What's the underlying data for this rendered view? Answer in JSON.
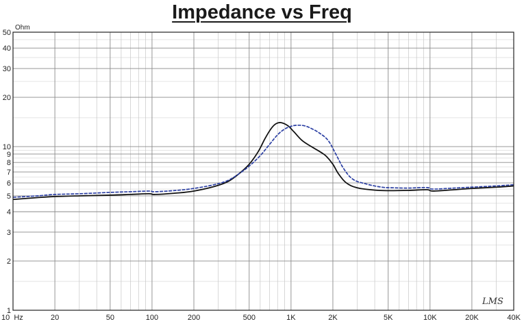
{
  "chart_data": {
    "type": "line",
    "title": "Impedance vs Freq",
    "ylabel": "Ohm",
    "xlabel": "",
    "x_scale": "log",
    "y_scale": "log",
    "xlim": [
      10,
      40000
    ],
    "ylim": [
      1,
      50
    ],
    "grid": true,
    "watermark": "LMS",
    "x_tick_labels": [
      {
        "value": 10,
        "label": "10  Hz"
      },
      {
        "value": 20,
        "label": "20"
      },
      {
        "value": 50,
        "label": "50"
      },
      {
        "value": 100,
        "label": "100"
      },
      {
        "value": 200,
        "label": "200"
      },
      {
        "value": 500,
        "label": "500"
      },
      {
        "value": 1000,
        "label": "1K"
      },
      {
        "value": 2000,
        "label": "2K"
      },
      {
        "value": 5000,
        "label": "5K"
      },
      {
        "value": 10000,
        "label": "10K"
      },
      {
        "value": 20000,
        "label": "20K"
      },
      {
        "value": 40000,
        "label": "40K"
      }
    ],
    "y_tick_labels": [
      {
        "value": 1,
        "label": "1"
      },
      {
        "value": 2,
        "label": "2"
      },
      {
        "value": 3,
        "label": "3"
      },
      {
        "value": 4,
        "label": "4"
      },
      {
        "value": 5,
        "label": "5"
      },
      {
        "value": 6,
        "label": "6"
      },
      {
        "value": 7,
        "label": "7"
      },
      {
        "value": 8,
        "label": "8"
      },
      {
        "value": 9,
        "label": "9"
      },
      {
        "value": 10,
        "label": "10"
      },
      {
        "value": 20,
        "label": "20"
      },
      {
        "value": 30,
        "label": "30"
      },
      {
        "value": 40,
        "label": "40"
      },
      {
        "value": 50,
        "label": "50"
      }
    ],
    "series": [
      {
        "color": "#111111",
        "style": "solid",
        "points": [
          [
            10,
            4.75
          ],
          [
            15,
            4.88
          ],
          [
            20,
            4.95
          ],
          [
            30,
            5.0
          ],
          [
            50,
            5.05
          ],
          [
            70,
            5.1
          ],
          [
            95,
            5.15
          ],
          [
            105,
            5.1
          ],
          [
            150,
            5.2
          ],
          [
            200,
            5.35
          ],
          [
            280,
            5.7
          ],
          [
            350,
            6.1
          ],
          [
            420,
            6.8
          ],
          [
            500,
            7.8
          ],
          [
            580,
            9.3
          ],
          [
            650,
            11.2
          ],
          [
            720,
            12.9
          ],
          [
            780,
            13.8
          ],
          [
            850,
            14.0
          ],
          [
            950,
            13.4
          ],
          [
            1050,
            12.3
          ],
          [
            1200,
            10.9
          ],
          [
            1400,
            10.0
          ],
          [
            1650,
            9.2
          ],
          [
            1800,
            8.7
          ],
          [
            2000,
            7.8
          ],
          [
            2200,
            6.8
          ],
          [
            2500,
            6.0
          ],
          [
            3000,
            5.6
          ],
          [
            4000,
            5.42
          ],
          [
            5000,
            5.38
          ],
          [
            7000,
            5.4
          ],
          [
            9500,
            5.45
          ],
          [
            10500,
            5.35
          ],
          [
            15000,
            5.45
          ],
          [
            20000,
            5.55
          ],
          [
            30000,
            5.65
          ],
          [
            40000,
            5.75
          ]
        ]
      },
      {
        "color": "#2b3fa3",
        "style": "dashed",
        "points": [
          [
            10,
            4.9
          ],
          [
            15,
            5.0
          ],
          [
            20,
            5.1
          ],
          [
            30,
            5.15
          ],
          [
            50,
            5.25
          ],
          [
            70,
            5.3
          ],
          [
            95,
            5.35
          ],
          [
            105,
            5.3
          ],
          [
            150,
            5.4
          ],
          [
            200,
            5.55
          ],
          [
            280,
            5.85
          ],
          [
            350,
            6.2
          ],
          [
            420,
            6.8
          ],
          [
            500,
            7.6
          ],
          [
            600,
            8.8
          ],
          [
            700,
            10.3
          ],
          [
            800,
            11.8
          ],
          [
            900,
            12.8
          ],
          [
            1000,
            13.3
          ],
          [
            1100,
            13.5
          ],
          [
            1250,
            13.4
          ],
          [
            1400,
            12.9
          ],
          [
            1600,
            12.1
          ],
          [
            1850,
            10.9
          ],
          [
            2100,
            9.0
          ],
          [
            2400,
            7.3
          ],
          [
            2800,
            6.3
          ],
          [
            3500,
            5.9
          ],
          [
            4500,
            5.65
          ],
          [
            5500,
            5.6
          ],
          [
            7000,
            5.58
          ],
          [
            9500,
            5.62
          ],
          [
            10500,
            5.5
          ],
          [
            15000,
            5.58
          ],
          [
            20000,
            5.65
          ],
          [
            30000,
            5.75
          ],
          [
            40000,
            5.85
          ]
        ]
      }
    ]
  }
}
